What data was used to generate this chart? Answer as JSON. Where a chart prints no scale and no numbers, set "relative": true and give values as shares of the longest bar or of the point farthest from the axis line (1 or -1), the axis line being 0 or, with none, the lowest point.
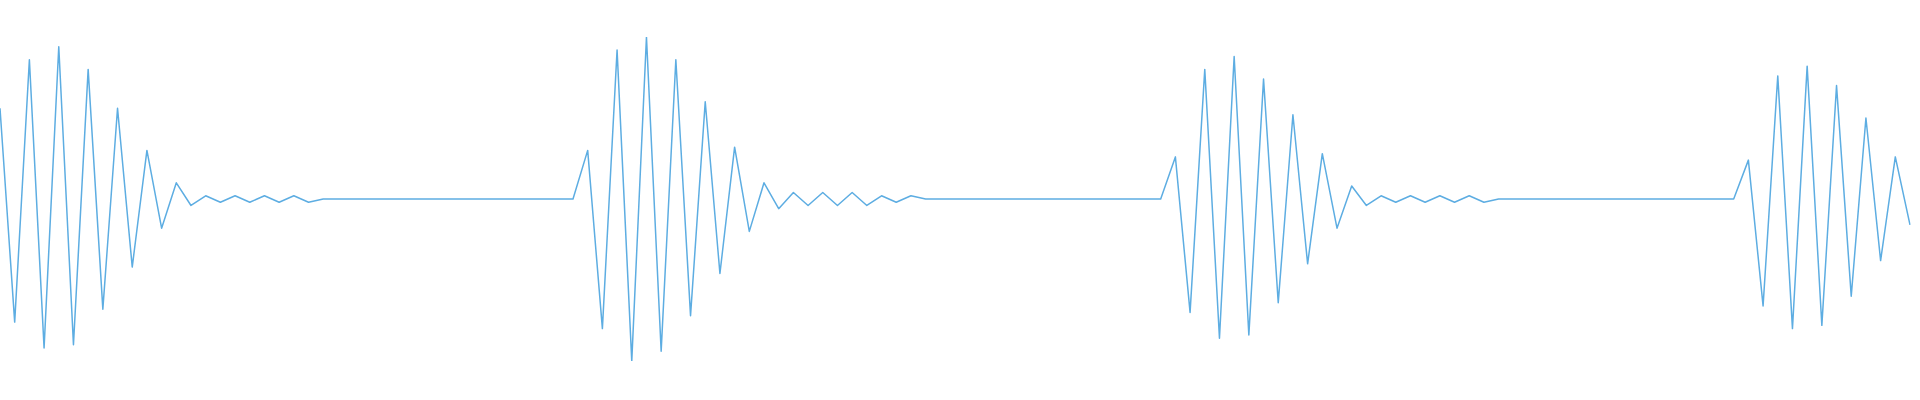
{
  "chart_data": {
    "type": "line",
    "relative": true,
    "categories": [
      null,
      null,
      null,
      null,
      null,
      null,
      null,
      null,
      null,
      null,
      null,
      null,
      null,
      null,
      null,
      null,
      null,
      null,
      null,
      null,
      null,
      null,
      null,
      null,
      null,
      null,
      null,
      null,
      null,
      null,
      null,
      null,
      null,
      null,
      null,
      null,
      null,
      null,
      null,
      null,
      null,
      null,
      null,
      null,
      null,
      null,
      null,
      null,
      null,
      null,
      null,
      null,
      null,
      null,
      null,
      null,
      null,
      null,
      null,
      null,
      null,
      null,
      null,
      null,
      null,
      null,
      null,
      null,
      null,
      null,
      null,
      null,
      null,
      null,
      null,
      null,
      null,
      null,
      null,
      null,
      null,
      null,
      null,
      null,
      null,
      null,
      null,
      null,
      null,
      null,
      null,
      null,
      null,
      null,
      null,
      null,
      null,
      null,
      null,
      null,
      null,
      null,
      null,
      null,
      null,
      null,
      null,
      null,
      null,
      null,
      null,
      null,
      null,
      null,
      null,
      null,
      null,
      null,
      null,
      null,
      null,
      null,
      null,
      null,
      null,
      null,
      null,
      null,
      null,
      null,
      null
    ],
    "series": [
      {
        "color": "#5dade2",
        "values": [
          0.78,
          0.12,
          0.93,
          0.04,
          0.97,
          0.05,
          0.9,
          0.16,
          0.78,
          0.29,
          0.65,
          0.41,
          0.55,
          0.48,
          0.51,
          0.49,
          0.51,
          0.49,
          0.51,
          0.49,
          0.51,
          0.49,
          0.5,
          0.5,
          0.5,
          0.5,
          0.5,
          0.5,
          0.5,
          0.5,
          0.5,
          0.5,
          0.5,
          0.5,
          0.5,
          0.5,
          0.5,
          0.5,
          0.5,
          0.5,
          0.65,
          0.1,
          0.96,
          0,
          1,
          0.03,
          0.93,
          0.14,
          0.8,
          0.27,
          0.66,
          0.4,
          0.55,
          0.47,
          0.52,
          0.48,
          0.52,
          0.48,
          0.52,
          0.48,
          0.51,
          0.49,
          0.51,
          0.5,
          0.5,
          0.5,
          0.5,
          0.5,
          0.5,
          0.5,
          0.5,
          0.5,
          0.5,
          0.5,
          0.5,
          0.5,
          0.5,
          0.5,
          0.5,
          0.5,
          0.63,
          0.15,
          0.9,
          0.07,
          0.94,
          0.08,
          0.87,
          0.18,
          0.76,
          0.3,
          0.64,
          0.41,
          0.54,
          0.48,
          0.51,
          0.49,
          0.51,
          0.49,
          0.51,
          0.49,
          0.51,
          0.49,
          0.5,
          0.5,
          0.5,
          0.5,
          0.5,
          0.5,
          0.5,
          0.5,
          0.5,
          0.5,
          0.5,
          0.5,
          0.5,
          0.5,
          0.5,
          0.5,
          0.5,
          0.62,
          0.17,
          0.88,
          0.1,
          0.91,
          0.11,
          0.85,
          0.2,
          0.75,
          0.31,
          0.63,
          0.42
        ]
      }
    ]
  }
}
